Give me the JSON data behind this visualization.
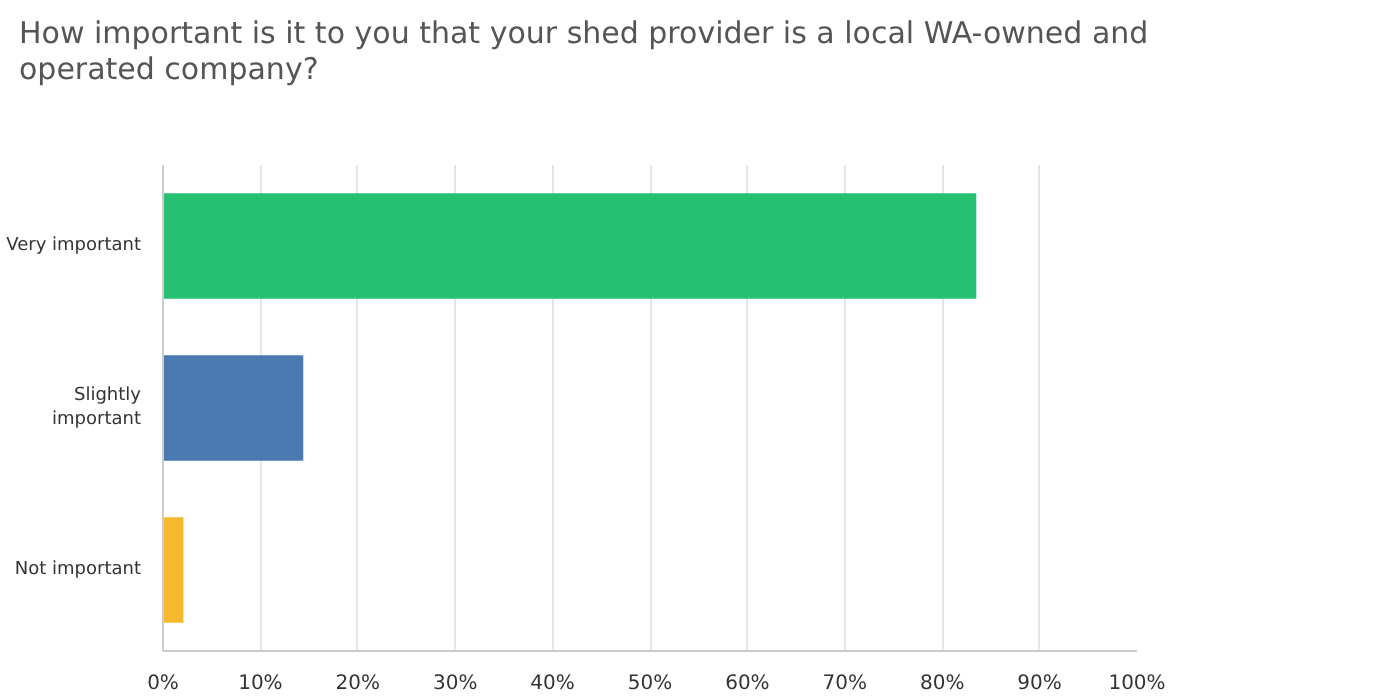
{
  "chart_data": {
    "type": "bar",
    "orientation": "horizontal",
    "title": "How important is it to you that your shed provider is a local WA-owned and operated company?",
    "categories": [
      "Very important",
      "Slightly important",
      "Not important"
    ],
    "values": [
      83.5,
      14.4,
      2.1
    ],
    "colors": [
      "#26c073",
      "#4b7ab3",
      "#f6b92e"
    ],
    "xlim": [
      0,
      100
    ],
    "xticks": [
      {
        "value": 0,
        "label": "0%"
      },
      {
        "value": 10,
        "label": "10%"
      },
      {
        "value": 20,
        "label": "20%"
      },
      {
        "value": 30,
        "label": "30%"
      },
      {
        "value": 40,
        "label": "40%"
      },
      {
        "value": 50,
        "label": "50%"
      },
      {
        "value": 60,
        "label": "60%"
      },
      {
        "value": 70,
        "label": "70%"
      },
      {
        "value": 80,
        "label": "80%"
      },
      {
        "value": 90,
        "label": "90%"
      },
      {
        "value": 100,
        "label": "100%"
      }
    ],
    "grid": "x"
  }
}
